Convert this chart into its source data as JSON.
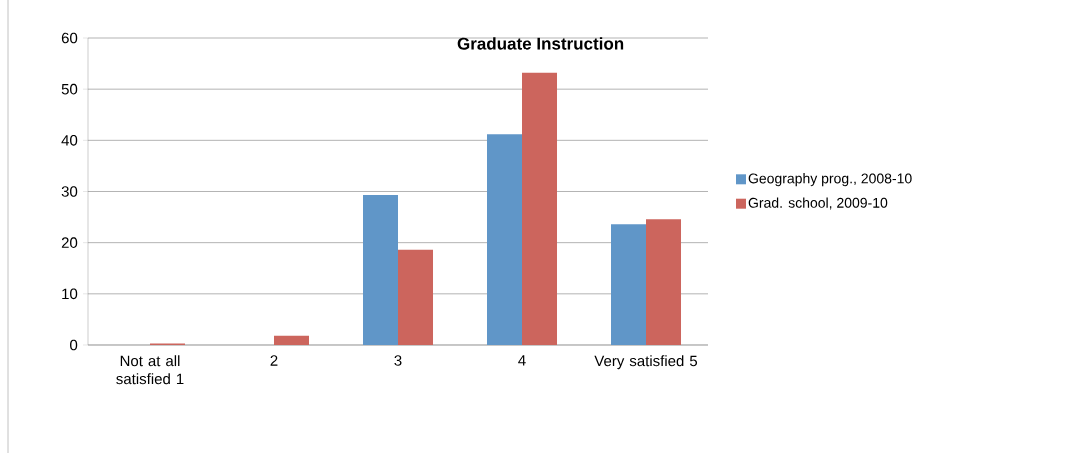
{
  "chart_data": {
    "type": "bar",
    "title": "Graduate Instruction",
    "categories": [
      "Not at all satisfied  1",
      "2",
      "3",
      "4",
      "Very satisfied 5"
    ],
    "series": [
      {
        "name": "Geography prog., 2008-10",
        "color": "#6096c8",
        "values": [
          0,
          0,
          29.3,
          41.2,
          23.6
        ]
      },
      {
        "name": "Grad. school, 2009-10",
        "color": "#cc655d",
        "values": [
          0.3,
          1.8,
          18.6,
          53.2,
          24.6
        ]
      }
    ],
    "ylim": [
      0,
      60
    ],
    "yticks": [
      0,
      10,
      20,
      30,
      40,
      50,
      60
    ],
    "grid": "y",
    "legend": "right"
  }
}
